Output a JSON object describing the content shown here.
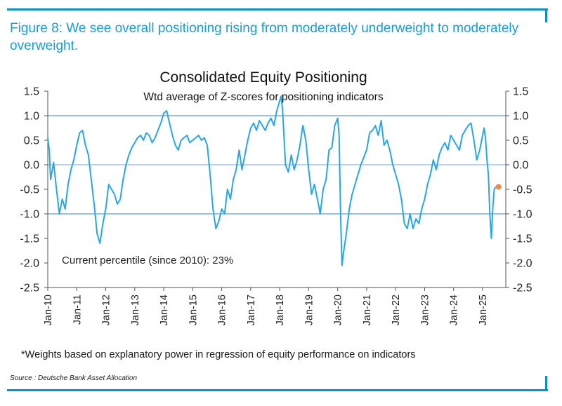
{
  "figure_caption": "Figure 8: We see overall positioning rising from moderately underweight to moderately overweight.",
  "footnote": "*Weights based on explanatory power in regression of equity performance on indicators",
  "source": "Source : Deutsche Bank Asset Allocation",
  "colors": {
    "accent": "#1a9bd7",
    "line": "#29a6e4",
    "marker": "#f0884a",
    "frame": "#0c8fc6"
  },
  "chart_data": {
    "type": "line",
    "title": "Consolidated Equity Positioning",
    "subtitle": "Wtd average of Z-scores for positioning indicators",
    "annotation": "Current percentile (since 2010): 23%",
    "ylim": [
      -2.5,
      1.5
    ],
    "yticks": [
      "1.5",
      "1.0",
      "0.5",
      "0.0",
      "-0.5",
      "-1.0",
      "-1.5",
      "-2.0",
      "-2.5"
    ],
    "reference_lines": [
      1.0,
      -1.0
    ],
    "xlim": [
      2010.0,
      2025.8
    ],
    "xticks": [
      "Jan-10",
      "Jan-11",
      "Jan-12",
      "Jan-13",
      "Jan-14",
      "Jan-15",
      "Jan-16",
      "Jan-17",
      "Jan-18",
      "Jan-19",
      "Jan-20",
      "Jan-21",
      "Jan-22",
      "Jan-23",
      "Jan-24",
      "Jan-25"
    ],
    "series": [
      {
        "name": "Consolidated equity positioning (Z-score)",
        "x": [
          2010.0,
          2010.05,
          2010.1,
          2010.2,
          2010.3,
          2010.4,
          2010.5,
          2010.6,
          2010.7,
          2010.8,
          2010.9,
          2011.0,
          2011.1,
          2011.2,
          2011.3,
          2011.4,
          2011.5,
          2011.6,
          2011.7,
          2011.8,
          2011.9,
          2012.0,
          2012.1,
          2012.2,
          2012.3,
          2012.4,
          2012.5,
          2012.6,
          2012.7,
          2012.8,
          2012.9,
          2013.0,
          2013.1,
          2013.2,
          2013.3,
          2013.4,
          2013.5,
          2013.6,
          2013.7,
          2013.8,
          2013.9,
          2014.0,
          2014.1,
          2014.2,
          2014.3,
          2014.4,
          2014.5,
          2014.6,
          2014.7,
          2014.8,
          2014.9,
          2015.0,
          2015.1,
          2015.2,
          2015.3,
          2015.4,
          2015.5,
          2015.6,
          2015.7,
          2015.8,
          2015.9,
          2016.0,
          2016.1,
          2016.2,
          2016.3,
          2016.4,
          2016.5,
          2016.6,
          2016.7,
          2016.8,
          2016.9,
          2017.0,
          2017.1,
          2017.2,
          2017.3,
          2017.4,
          2017.5,
          2017.6,
          2017.7,
          2017.8,
          2017.9,
          2018.0,
          2018.05,
          2018.1,
          2018.2,
          2018.3,
          2018.4,
          2018.5,
          2018.6,
          2018.7,
          2018.8,
          2018.9,
          2019.0,
          2019.1,
          2019.2,
          2019.3,
          2019.4,
          2019.5,
          2019.6,
          2019.7,
          2019.8,
          2019.9,
          2020.0,
          2020.05,
          2020.1,
          2020.15,
          2020.2,
          2020.3,
          2020.4,
          2020.5,
          2020.6,
          2020.7,
          2020.8,
          2020.9,
          2021.0,
          2021.1,
          2021.2,
          2021.3,
          2021.4,
          2021.5,
          2021.6,
          2021.7,
          2021.8,
          2021.9,
          2022.0,
          2022.1,
          2022.2,
          2022.3,
          2022.4,
          2022.5,
          2022.6,
          2022.7,
          2022.8,
          2022.9,
          2023.0,
          2023.1,
          2023.2,
          2023.3,
          2023.4,
          2023.5,
          2023.6,
          2023.7,
          2023.8,
          2023.9,
          2024.0,
          2024.1,
          2024.2,
          2024.3,
          2024.4,
          2024.5,
          2024.6,
          2024.7,
          2024.8,
          2024.9,
          2025.0,
          2025.05,
          2025.1,
          2025.15,
          2025.2,
          2025.25,
          2025.3,
          2025.35,
          2025.4,
          2025.45
        ],
        "values": [
          0.55,
          0.3,
          -0.3,
          0.05,
          -0.5,
          -1.0,
          -0.7,
          -0.9,
          -0.4,
          -0.1,
          0.1,
          0.4,
          0.65,
          0.7,
          0.4,
          0.2,
          -0.3,
          -0.8,
          -1.4,
          -1.6,
          -1.2,
          -0.9,
          -0.4,
          -0.5,
          -0.6,
          -0.8,
          -0.7,
          -0.3,
          0.0,
          0.2,
          0.35,
          0.45,
          0.55,
          0.6,
          0.5,
          0.65,
          0.6,
          0.45,
          0.55,
          0.7,
          0.85,
          1.05,
          1.1,
          0.85,
          0.6,
          0.4,
          0.3,
          0.5,
          0.55,
          0.6,
          0.45,
          0.5,
          0.55,
          0.6,
          0.5,
          0.55,
          0.4,
          -0.2,
          -0.9,
          -1.3,
          -1.15,
          -0.9,
          -1.0,
          -0.5,
          -0.7,
          -0.3,
          -0.1,
          0.3,
          -0.1,
          0.2,
          0.5,
          0.75,
          0.85,
          0.7,
          0.9,
          0.8,
          0.7,
          0.85,
          0.95,
          0.8,
          1.1,
          1.3,
          1.4,
          1.1,
          0.0,
          -0.15,
          0.2,
          -0.1,
          0.1,
          0.4,
          0.8,
          0.5,
          -0.1,
          -0.6,
          -0.4,
          -0.7,
          -1.0,
          -0.5,
          -0.3,
          0.3,
          0.35,
          0.8,
          0.95,
          0.6,
          -1.0,
          -2.05,
          -1.8,
          -1.4,
          -0.9,
          -0.6,
          -0.4,
          -0.2,
          0.0,
          0.15,
          0.3,
          0.65,
          0.7,
          0.8,
          0.6,
          0.9,
          0.4,
          0.5,
          0.3,
          0.0,
          -0.2,
          -0.4,
          -0.7,
          -1.2,
          -1.3,
          -1.0,
          -1.3,
          -1.1,
          -1.2,
          -0.9,
          -0.7,
          -0.4,
          -0.2,
          0.1,
          -0.1,
          0.2,
          0.35,
          0.45,
          0.3,
          0.6,
          0.5,
          0.4,
          0.3,
          0.6,
          0.7,
          0.8,
          0.85,
          0.5,
          0.1,
          0.3,
          0.6,
          0.75,
          0.55,
          0.1,
          -0.2,
          -1.0,
          -1.5,
          -0.9,
          -0.5,
          -0.45
        ]
      }
    ],
    "current_marker": {
      "x": 2025.55,
      "y": -0.45
    }
  }
}
